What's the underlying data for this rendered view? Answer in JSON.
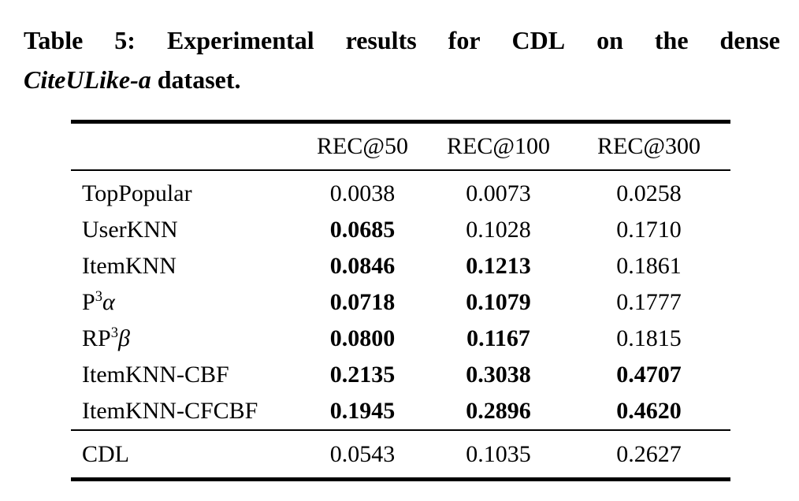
{
  "caption": {
    "line1_words": [
      "Table",
      "5:",
      "Experimental",
      "results",
      "for",
      "CDL",
      "on",
      "the",
      "dense"
    ],
    "line2_italic": "CiteULike-a",
    "line2_rest": " dataset.",
    "full_text": "Table 5: Experimental results for CDL on the dense CiteULike-a dataset."
  },
  "table": {
    "col_headers": [
      "REC@50",
      "REC@100",
      "REC@300"
    ],
    "rows": [
      {
        "label": [
          {
            "t": "TopPopular"
          }
        ],
        "values": [
          {
            "v": "0.0038",
            "bold": false
          },
          {
            "v": "0.0073",
            "bold": false
          },
          {
            "v": "0.0258",
            "bold": false
          }
        ]
      },
      {
        "label": [
          {
            "t": "UserKNN"
          }
        ],
        "values": [
          {
            "v": "0.0685",
            "bold": true
          },
          {
            "v": "0.1028",
            "bold": false
          },
          {
            "v": "0.1710",
            "bold": false
          }
        ]
      },
      {
        "label": [
          {
            "t": "ItemKNN"
          }
        ],
        "values": [
          {
            "v": "0.0846",
            "bold": true
          },
          {
            "v": "0.1213",
            "bold": true
          },
          {
            "v": "0.1861",
            "bold": false
          }
        ]
      },
      {
        "label": [
          {
            "t": "P"
          },
          {
            "t": "3",
            "sup": true
          },
          {
            "t": "α",
            "italic": true
          }
        ],
        "values": [
          {
            "v": "0.0718",
            "bold": true
          },
          {
            "v": "0.1079",
            "bold": true
          },
          {
            "v": "0.1777",
            "bold": false
          }
        ]
      },
      {
        "label": [
          {
            "t": "RP"
          },
          {
            "t": "3",
            "sup": true
          },
          {
            "t": "β",
            "italic": true
          }
        ],
        "values": [
          {
            "v": "0.0800",
            "bold": true
          },
          {
            "v": "0.1167",
            "bold": true
          },
          {
            "v": "0.1815",
            "bold": false
          }
        ]
      },
      {
        "label": [
          {
            "t": "ItemKNN-CBF"
          }
        ],
        "values": [
          {
            "v": "0.2135",
            "bold": true
          },
          {
            "v": "0.3038",
            "bold": true
          },
          {
            "v": "0.4707",
            "bold": true
          }
        ]
      },
      {
        "label": [
          {
            "t": "ItemKNN-CFCBF"
          }
        ],
        "values": [
          {
            "v": "0.1945",
            "bold": true
          },
          {
            "v": "0.2896",
            "bold": true
          },
          {
            "v": "0.4620",
            "bold": true
          }
        ]
      }
    ],
    "footer_row": {
      "label": [
        {
          "t": "CDL"
        }
      ],
      "values": [
        {
          "v": "0.0543",
          "bold": false
        },
        {
          "v": "0.1035",
          "bold": false
        },
        {
          "v": "0.2627",
          "bold": false
        }
      ]
    }
  },
  "colors": {
    "text": "#000000",
    "background": "#ffffff",
    "rule": "#000000"
  }
}
